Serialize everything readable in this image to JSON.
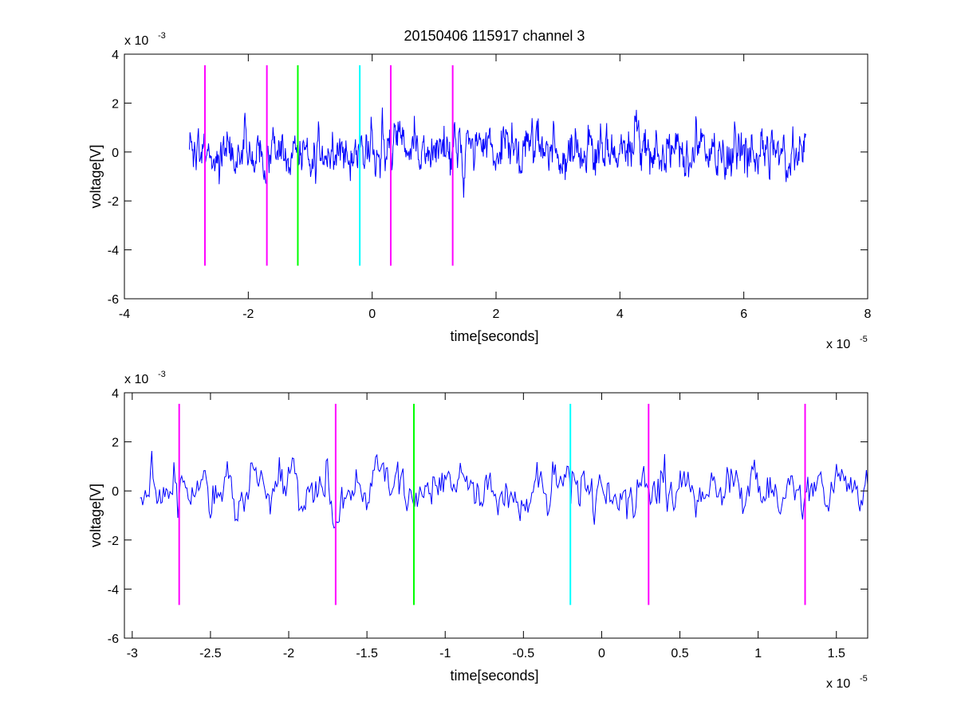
{
  "figure": {
    "title": "20150406 115917 channel 3"
  },
  "chart_data": [
    {
      "type": "line",
      "title": "20150406 115917 channel 3",
      "xlabel": "time[seconds]",
      "ylabel": "voltage[V]",
      "x_multiplier": {
        "base": "x 10",
        "exp": "-5"
      },
      "y_multiplier": {
        "base": "x 10",
        "exp": "-3"
      },
      "xlim": [
        -4,
        8
      ],
      "ylim": [
        -6,
        4
      ],
      "xticks": [
        -4,
        -2,
        0,
        2,
        4,
        6,
        8
      ],
      "xtick_labels": [
        "-4",
        "-2",
        "0",
        "2",
        "4",
        "6",
        "8"
      ],
      "yticks": [
        -6,
        -4,
        -2,
        0,
        2,
        4
      ],
      "ytick_labels": [
        "-6",
        "-4",
        "-2",
        "0",
        "2",
        "4"
      ],
      "grid": false,
      "signal": {
        "color": "#0000ff",
        "x_start": -2.95,
        "x_end": 7.0,
        "points": 1100,
        "seed": 7
      },
      "events": [
        {
          "x": -2.7,
          "color": "#ff00ff"
        },
        {
          "x": -1.7,
          "color": "#ff00ff"
        },
        {
          "x": -1.2,
          "color": "#00ff00"
        },
        {
          "x": -0.2,
          "color": "#00ffff"
        },
        {
          "x": 0.3,
          "color": "#ff00ff"
        },
        {
          "x": 1.3,
          "color": "#ff00ff"
        }
      ],
      "event_y_range": [
        -4.65,
        3.55
      ]
    },
    {
      "type": "line",
      "xlabel": "time[seconds]",
      "ylabel": "voltage[V]",
      "x_multiplier": {
        "base": "x 10",
        "exp": "-5"
      },
      "y_multiplier": {
        "base": "x 10",
        "exp": "-3"
      },
      "xlim": [
        -3.05,
        1.7
      ],
      "ylim": [
        -6,
        4
      ],
      "xticks": [
        -3,
        -2.5,
        -2,
        -1.5,
        -1,
        -0.5,
        0,
        0.5,
        1,
        1.5
      ],
      "xtick_labels": [
        "-3",
        "-2.5",
        "-2",
        "-1.5",
        "-1",
        "-0.5",
        "0",
        "0.5",
        "1",
        "1.5"
      ],
      "yticks": [
        -6,
        -4,
        -2,
        0,
        2,
        4
      ],
      "ytick_labels": [
        "-6",
        "-4",
        "-2",
        "0",
        "2",
        "4"
      ],
      "grid": false,
      "signal": {
        "color": "#0000ff",
        "x_start": -2.95,
        "x_end": 1.7,
        "points": 560,
        "seed": 13
      },
      "events": [
        {
          "x": -2.7,
          "color": "#ff00ff"
        },
        {
          "x": -1.7,
          "color": "#ff00ff"
        },
        {
          "x": -1.2,
          "color": "#00ff00"
        },
        {
          "x": -0.2,
          "color": "#00ffff"
        },
        {
          "x": 0.3,
          "color": "#ff00ff"
        },
        {
          "x": 1.3,
          "color": "#ff00ff"
        }
      ],
      "event_y_range": [
        -4.65,
        3.55
      ]
    }
  ]
}
